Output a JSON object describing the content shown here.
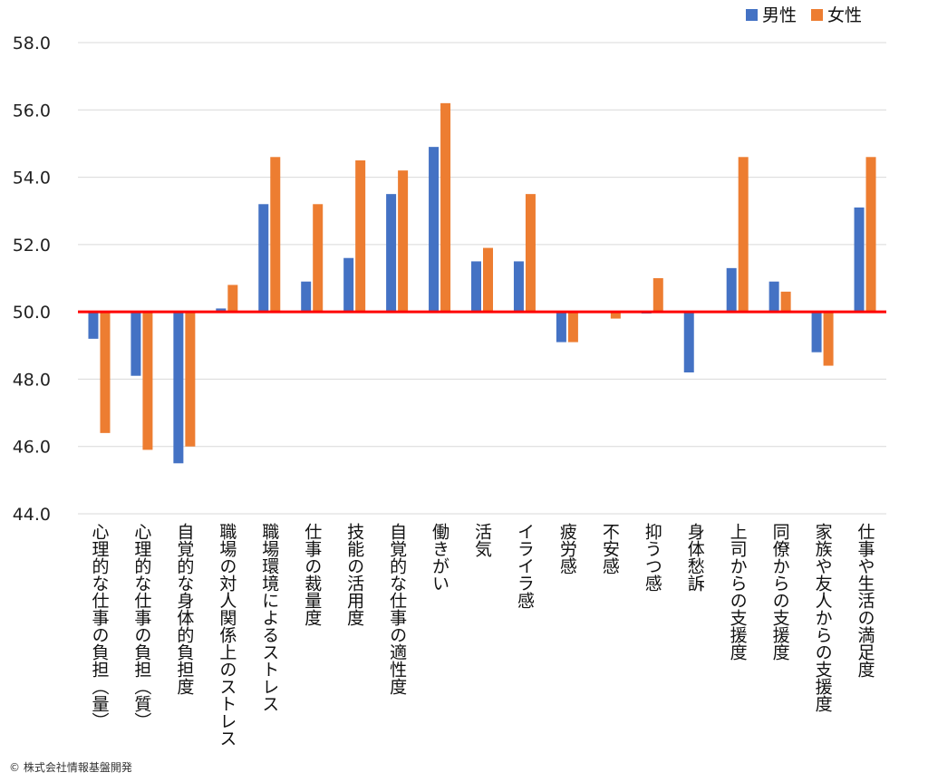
{
  "chart_data": {
    "type": "bar",
    "title": "",
    "xlabel": "",
    "ylabel": "",
    "ylim": [
      44,
      58
    ],
    "yticks": [
      "44.0",
      "46.0",
      "48.0",
      "50.0",
      "52.0",
      "54.0",
      "56.0",
      "58.0"
    ],
    "baseline": 50,
    "grid": true,
    "legend_position": "top-right",
    "categories": [
      "心理的な仕事の負担（量）",
      "心理的な仕事の負担（質）",
      "自覚的な身体的負担度",
      "職場の対人関係上のストレス",
      "職場環境によるストレス",
      "仕事の裁量度",
      "技能の活用度",
      "自覚的な仕事の適性度",
      "働きがい",
      "活気",
      "イライラ感",
      "疲労感",
      "不安感",
      "抑うつ感",
      "身体愁訴",
      "上司からの支援度",
      "同僚からの支援度",
      "家族や友人からの支援度",
      "仕事や生活の満足度"
    ],
    "series": [
      {
        "name": "男性",
        "color": "#4472C4",
        "values": [
          49.2,
          48.1,
          45.5,
          50.1,
          53.2,
          50.9,
          51.6,
          53.5,
          54.9,
          51.5,
          51.5,
          49.1,
          50.0,
          49.95,
          48.2,
          51.3,
          50.9,
          48.8,
          53.1
        ]
      },
      {
        "name": "女性",
        "color": "#ED7D31",
        "values": [
          46.4,
          45.9,
          46.0,
          50.8,
          54.6,
          53.2,
          54.5,
          54.2,
          56.2,
          51.9,
          53.5,
          49.1,
          49.8,
          51.0,
          50.0,
          54.6,
          50.6,
          48.4,
          54.6
        ]
      }
    ],
    "baseline_color": "#FF0000"
  },
  "footer": {
    "copyright": "© 株式会社情報基盤開発"
  }
}
